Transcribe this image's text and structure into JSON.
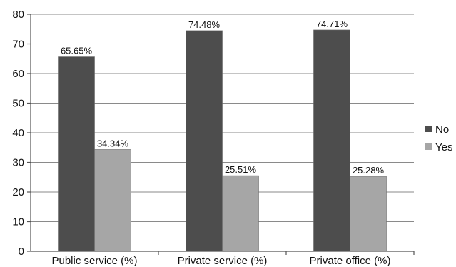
{
  "chart_data": {
    "type": "bar",
    "categories": [
      "Public service (%)",
      "Private service (%)",
      "Private office (%)"
    ],
    "series": [
      {
        "name": "No",
        "color": "#4d4d4d",
        "values": [
          65.65,
          74.48,
          74.71
        ],
        "labels": [
          "65.65%",
          "74.48%",
          "74.71%"
        ]
      },
      {
        "name": "Yes",
        "color": "#a6a6a6",
        "values": [
          34.34,
          25.51,
          25.28
        ],
        "labels": [
          "34.34%",
          "25.51%",
          "25.28%"
        ]
      }
    ],
    "ylim": [
      0,
      80
    ],
    "yticks": [
      0,
      10,
      20,
      30,
      40,
      50,
      60,
      70,
      80
    ],
    "grid": true,
    "legend": "right"
  }
}
